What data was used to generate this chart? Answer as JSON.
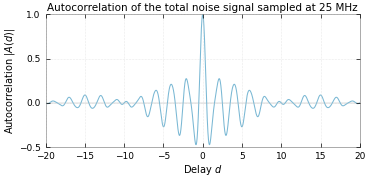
{
  "title": "Autocorrelation of the total noise signal sampled at 25 MHz",
  "xlabel": "Delay $d$",
  "ylabel": "Autocorrelation $|A(d)|$",
  "xlim": [
    -20,
    20
  ],
  "ylim": [
    -0.5,
    1.0
  ],
  "xticks": [
    -20,
    -15,
    -10,
    -5,
    0,
    5,
    10,
    15,
    20
  ],
  "yticks": [
    -0.5,
    0,
    0.5,
    1
  ],
  "line_color": "#7ab8d4",
  "background_color": "#ffffff",
  "title_fontsize": 7.5,
  "label_fontsize": 7.0,
  "tick_fontsize": 6.5,
  "linewidth": 0.75
}
